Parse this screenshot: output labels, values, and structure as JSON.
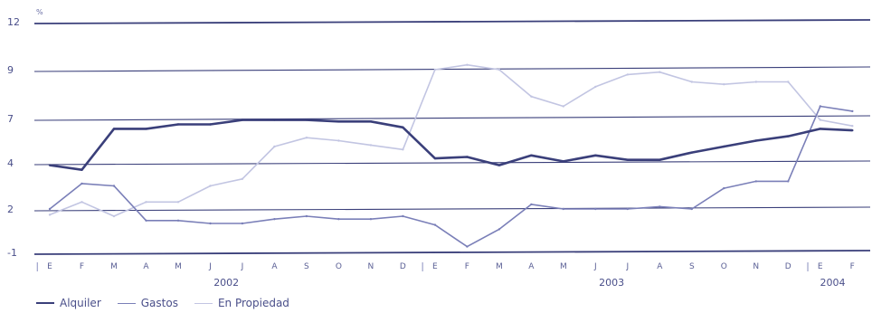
{
  "chart_data": {
    "type": "line",
    "unit_label": "%",
    "y_ticks": [
      "12",
      "9",
      "7",
      "4",
      "2",
      "-1"
    ],
    "months": [
      "E",
      "F",
      "M",
      "A",
      "M",
      "J",
      "J",
      "A",
      "S",
      "O",
      "N",
      "D",
      "E",
      "F",
      "M",
      "A",
      "M",
      "J",
      "J",
      "A",
      "S",
      "O",
      "N",
      "D",
      "E",
      "F"
    ],
    "years": [
      "2002",
      "2003",
      "2004"
    ],
    "series": [
      {
        "name": "Alquiler",
        "color": "#3a3f7a",
        "values": [
          3.9,
          3.7,
          6.3,
          6.3,
          6.6,
          6.6,
          6.9,
          6.9,
          6.9,
          6.8,
          6.8,
          6.4,
          4.3,
          4.4,
          3.9,
          4.5,
          4.1,
          4.5,
          4.2,
          4.2,
          4.7,
          5.1,
          5.5,
          5.8,
          6.3,
          6.2
        ]
      },
      {
        "name": "Gastos",
        "color": "#7a7fb8",
        "values": [
          2.0,
          3.1,
          3.0,
          1.2,
          1.2,
          1.0,
          1.0,
          1.3,
          1.5,
          1.3,
          1.3,
          1.5,
          0.9,
          -0.6,
          0.6,
          2.2,
          2.0,
          2.0,
          2.0,
          2.1,
          2.0,
          2.9,
          3.2,
          3.2,
          7.5,
          7.3
        ]
      },
      {
        "name": "En Propiedad",
        "color": "#c2c5e2",
        "values": [
          1.6,
          2.3,
          1.5,
          2.3,
          2.3,
          3.0,
          3.3,
          5.1,
          5.7,
          5.5,
          5.2,
          4.9,
          9.0,
          9.3,
          9.0,
          7.9,
          7.5,
          8.3,
          8.8,
          8.9,
          8.5,
          8.4,
          8.5,
          8.5,
          6.9,
          6.5
        ]
      }
    ]
  }
}
